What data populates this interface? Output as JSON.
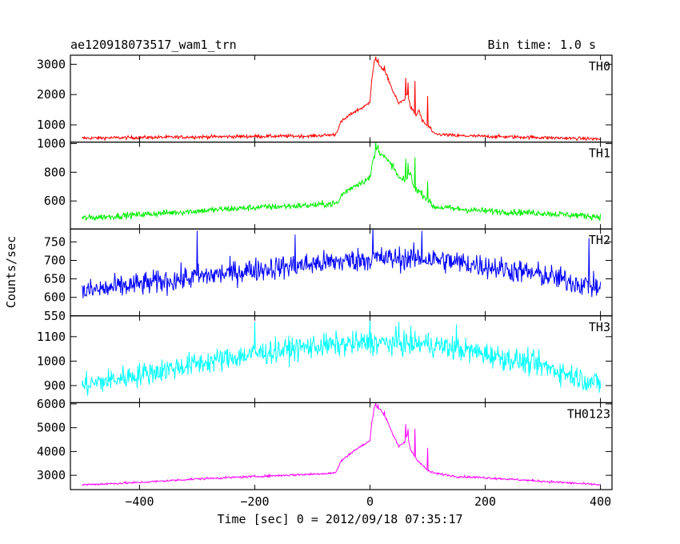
{
  "header": {
    "left": "ae120918073517_wam1_trn",
    "right": "Bin time: 1.0 s"
  },
  "ylabel": "Counts/sec",
  "xlabel": "Time [sec] 0 = 2012/09/18 07:35:17",
  "chart_data": [
    {
      "type": "line",
      "name": "TH0",
      "color": "#ff0000",
      "ylim": [
        430,
        3300
      ],
      "yticks": [
        1000,
        2000,
        3000
      ],
      "xlim": [
        -520,
        420
      ],
      "xticks": [
        -400,
        -200,
        0,
        200,
        400
      ],
      "noise": 55,
      "points": [
        [
          -500,
          560
        ],
        [
          -400,
          580
        ],
        [
          -300,
          600
        ],
        [
          -200,
          620
        ],
        [
          -100,
          630
        ],
        [
          -60,
          680
        ],
        [
          -50,
          1100
        ],
        [
          -30,
          1400
        ],
        [
          -10,
          1600
        ],
        [
          -3,
          1700
        ],
        [
          0,
          1800
        ],
        [
          3,
          2500
        ],
        [
          8,
          3150
        ],
        [
          20,
          2900
        ],
        [
          30,
          2600
        ],
        [
          40,
          2100
        ],
        [
          50,
          1700
        ],
        [
          60,
          1850
        ],
        [
          65,
          2050
        ],
        [
          70,
          1600
        ],
        [
          80,
          1300
        ],
        [
          85,
          1500
        ],
        [
          90,
          1150
        ],
        [
          100,
          950
        ],
        [
          105,
          900
        ],
        [
          110,
          700
        ],
        [
          150,
          640
        ],
        [
          200,
          620
        ],
        [
          300,
          580
        ],
        [
          400,
          530
        ]
      ],
      "spikes": [
        [
          10,
          3250
        ],
        [
          14,
          3180
        ],
        [
          25,
          2950
        ],
        [
          62,
          2550
        ],
        [
          66,
          2400
        ],
        [
          78,
          2450
        ],
        [
          100,
          1950
        ]
      ]
    },
    {
      "type": "line",
      "name": "TH1",
      "color": "#00ee00",
      "ylim": [
        405,
        1010
      ],
      "yticks": [
        600,
        800,
        1000
      ],
      "xlim": [
        -520,
        420
      ],
      "xticks": [
        -400,
        -200,
        0,
        200,
        400
      ],
      "noise": 22,
      "points": [
        [
          -500,
          480
        ],
        [
          -400,
          505
        ],
        [
          -300,
          530
        ],
        [
          -200,
          555
        ],
        [
          -100,
          570
        ],
        [
          -55,
          585
        ],
        [
          -50,
          640
        ],
        [
          -30,
          700
        ],
        [
          -10,
          740
        ],
        [
          0,
          760
        ],
        [
          5,
          880
        ],
        [
          12,
          960
        ],
        [
          20,
          930
        ],
        [
          30,
          880
        ],
        [
          40,
          840
        ],
        [
          50,
          760
        ],
        [
          60,
          740
        ],
        [
          70,
          800
        ],
        [
          75,
          700
        ],
        [
          90,
          650
        ],
        [
          100,
          610
        ],
        [
          110,
          560
        ],
        [
          150,
          545
        ],
        [
          200,
          530
        ],
        [
          300,
          515
        ],
        [
          400,
          490
        ]
      ],
      "spikes": [
        [
          10,
          1010
        ],
        [
          14,
          990
        ],
        [
          62,
          895
        ],
        [
          66,
          865
        ],
        [
          78,
          905
        ],
        [
          100,
          735
        ]
      ]
    },
    {
      "type": "line",
      "name": "TH2",
      "color": "#0000ff",
      "ylim": [
        550,
        785
      ],
      "yticks": [
        550,
        600,
        650,
        700,
        750
      ],
      "xlim": [
        -520,
        420
      ],
      "xticks": [
        -400,
        -200,
        0,
        200,
        400
      ],
      "noise": 32,
      "points": [
        [
          -500,
          615
        ],
        [
          -400,
          635
        ],
        [
          -300,
          655
        ],
        [
          -200,
          675
        ],
        [
          -100,
          690
        ],
        [
          0,
          705
        ],
        [
          100,
          705
        ],
        [
          200,
          685
        ],
        [
          300,
          660
        ],
        [
          400,
          625
        ]
      ],
      "spikes": [
        [
          -300,
          780
        ],
        [
          -130,
          770
        ],
        [
          5,
          785
        ],
        [
          90,
          780
        ],
        [
          380,
          760
        ]
      ]
    },
    {
      "type": "line",
      "name": "TH3",
      "color": "#00ffff",
      "ylim": [
        830,
        1185
      ],
      "yticks": [
        900,
        1000,
        1100
      ],
      "xlim": [
        -520,
        420
      ],
      "xticks": [
        -400,
        -200,
        0,
        200,
        400
      ],
      "noise": 48,
      "points": [
        [
          -500,
          900
        ],
        [
          -400,
          945
        ],
        [
          -300,
          990
        ],
        [
          -200,
          1030
        ],
        [
          -100,
          1060
        ],
        [
          0,
          1075
        ],
        [
          100,
          1070
        ],
        [
          200,
          1030
        ],
        [
          300,
          980
        ],
        [
          400,
          905
        ]
      ],
      "spikes": [
        [
          -200,
          1160
        ],
        [
          0,
          1175
        ],
        [
          50,
          1160
        ],
        [
          150,
          1150
        ]
      ]
    },
    {
      "type": "line",
      "name": "TH0123",
      "color": "#ff00ff",
      "ylim": [
        2400,
        6050
      ],
      "yticks": [
        3000,
        4000,
        5000,
        6000
      ],
      "xlim": [
        -520,
        420
      ],
      "xticks": [
        -400,
        -200,
        0,
        200,
        400
      ],
      "noise": 45,
      "points": [
        [
          -500,
          2600
        ],
        [
          -400,
          2700
        ],
        [
          -300,
          2850
        ],
        [
          -200,
          2950
        ],
        [
          -100,
          3050
        ],
        [
          -60,
          3100
        ],
        [
          -50,
          3600
        ],
        [
          -30,
          4000
        ],
        [
          -10,
          4300
        ],
        [
          0,
          4450
        ],
        [
          3,
          5200
        ],
        [
          8,
          5950
        ],
        [
          20,
          5700
        ],
        [
          30,
          5300
        ],
        [
          40,
          4700
        ],
        [
          50,
          4200
        ],
        [
          60,
          4400
        ],
        [
          65,
          4700
        ],
        [
          70,
          4100
        ],
        [
          80,
          3700
        ],
        [
          90,
          3450
        ],
        [
          100,
          3200
        ],
        [
          110,
          3100
        ],
        [
          150,
          2950
        ],
        [
          200,
          2900
        ],
        [
          300,
          2750
        ],
        [
          400,
          2600
        ]
      ],
      "spikes": [
        [
          10,
          6050
        ],
        [
          14,
          5980
        ],
        [
          25,
          5700
        ],
        [
          62,
          5150
        ],
        [
          66,
          4950
        ],
        [
          78,
          4950
        ],
        [
          100,
          4150
        ]
      ]
    }
  ]
}
